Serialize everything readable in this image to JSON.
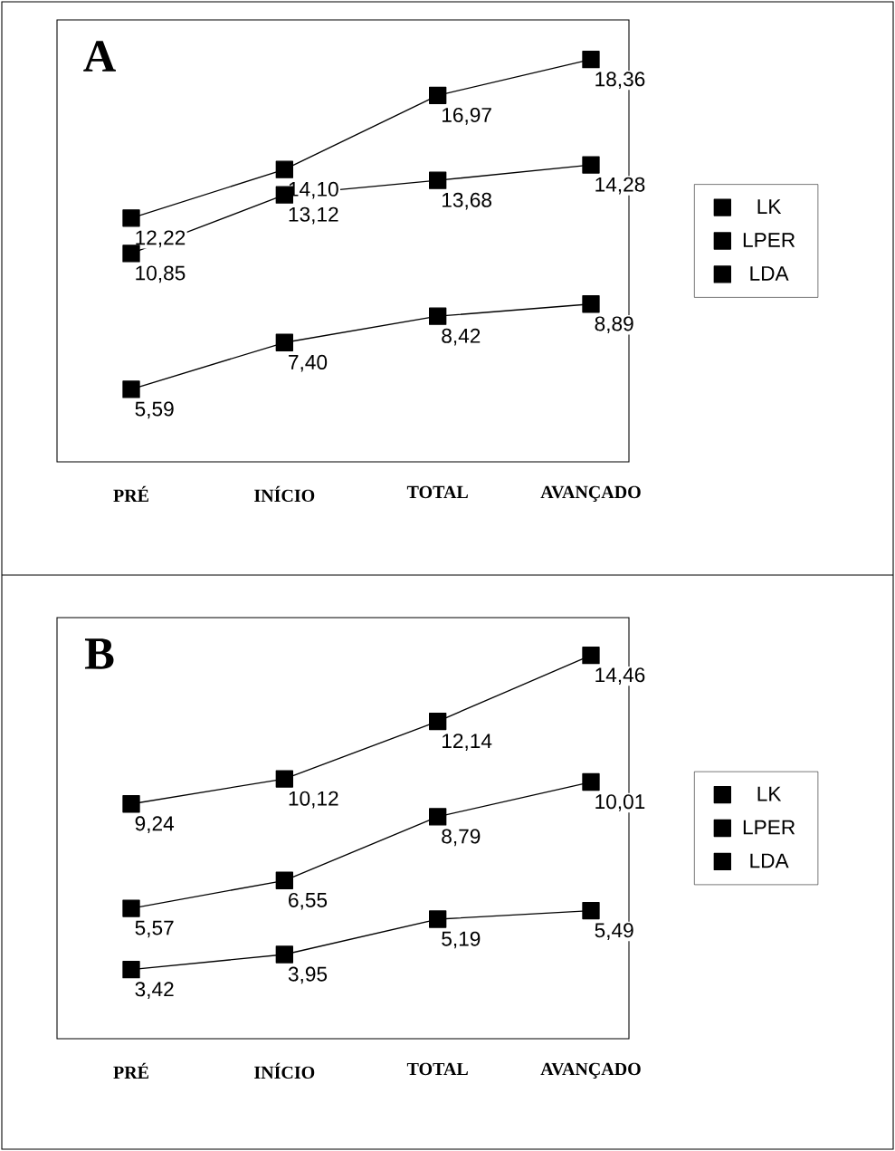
{
  "chart_data": [
    {
      "type": "line",
      "title": "A",
      "categories": [
        "PRÉ",
        "INÍCIO",
        "TOTAL",
        "AVANÇADO"
      ],
      "marker": "square",
      "legend": "right",
      "tick_labels": "x",
      "series": [
        {
          "name": "LK",
          "color": "#000000",
          "values": [
            12.22,
            14.1,
            16.97,
            18.36
          ],
          "value_labels": [
            "12,22",
            "14,10",
            "16,97",
            "18,36"
          ]
        },
        {
          "name": "LPER",
          "color": "#000000",
          "values": [
            10.85,
            13.12,
            13.68,
            14.28
          ],
          "value_labels": [
            "10,85",
            "13,12",
            "13,68",
            "14,28"
          ]
        },
        {
          "name": "LDA",
          "color": "#000000",
          "values": [
            5.59,
            7.4,
            8.42,
            8.89
          ],
          "value_labels": [
            "5,59",
            "7,40",
            "8,42",
            "8,89"
          ]
        }
      ]
    },
    {
      "type": "line",
      "title": "B",
      "categories": [
        "PRÉ",
        "INÍCIO",
        "TOTAL",
        "AVANÇADO"
      ],
      "marker": "square",
      "legend": "right",
      "tick_labels": "x",
      "series": [
        {
          "name": "LK",
          "color": "#000000",
          "values": [
            9.24,
            10.12,
            12.14,
            14.46
          ],
          "value_labels": [
            "9,24",
            "10,12",
            "12,14",
            "14,46"
          ]
        },
        {
          "name": "LPER",
          "color": "#000000",
          "values": [
            5.57,
            6.55,
            8.79,
            10.01
          ],
          "value_labels": [
            "5,57",
            "6,55",
            "8,79",
            "10,01"
          ]
        },
        {
          "name": "LDA",
          "color": "#000000",
          "values": [
            3.42,
            3.95,
            5.19,
            5.49
          ],
          "value_labels": [
            "3,42",
            "3,95",
            "5,19",
            "5,49"
          ]
        }
      ]
    }
  ]
}
